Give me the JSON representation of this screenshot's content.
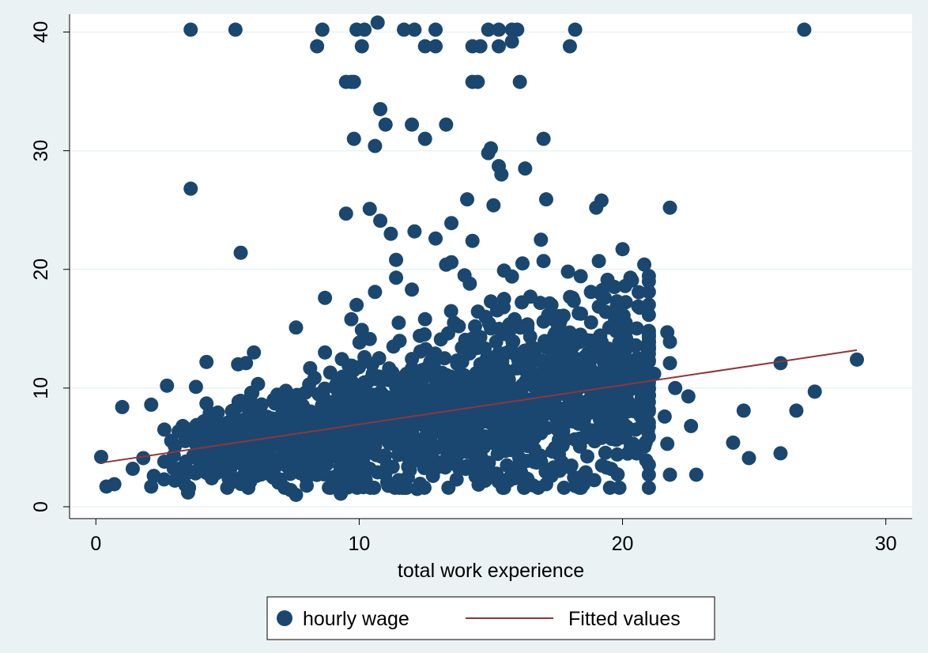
{
  "chart_data": {
    "type": "scatter",
    "title": "",
    "xlabel": "total work experience",
    "ylabel": "",
    "xlim": [
      -1,
      31
    ],
    "ylim": [
      -1,
      41.5
    ],
    "x_ticks": [
      0,
      10,
      20,
      30
    ],
    "y_ticks": [
      0,
      10,
      20,
      30,
      40
    ],
    "grid": "horizontal",
    "legend_position": "bottom",
    "colors": {
      "points": "#1a476f",
      "fit_line": "#90353b",
      "plot_bg": "#ffffff",
      "outer_bg": "#eaf2f3",
      "grid": "#eaf2f3"
    },
    "series": [
      {
        "name": "hourly wage",
        "type": "scatter",
        "color": "#1a476f",
        "points": [
          [
            3.6,
            40.2
          ],
          [
            5.3,
            40.2
          ],
          [
            8.6,
            40.2
          ],
          [
            9.9,
            40.2
          ],
          [
            10.2,
            40.2
          ],
          [
            10.7,
            40.8
          ],
          [
            11.7,
            40.2
          ],
          [
            12.1,
            40.2
          ],
          [
            12.9,
            40.2
          ],
          [
            14.9,
            40.2
          ],
          [
            15.3,
            40.2
          ],
          [
            15.8,
            40.2
          ],
          [
            16.0,
            40.2
          ],
          [
            18.2,
            40.2
          ],
          [
            26.9,
            40.2
          ],
          [
            8.4,
            38.8
          ],
          [
            10.1,
            38.8
          ],
          [
            12.5,
            38.8
          ],
          [
            12.9,
            38.8
          ],
          [
            14.3,
            38.8
          ],
          [
            14.6,
            38.8
          ],
          [
            15.3,
            38.8
          ],
          [
            15.8,
            39.2
          ],
          [
            18.0,
            38.8
          ],
          [
            9.5,
            35.8
          ],
          [
            9.7,
            35.8
          ],
          [
            9.8,
            35.8
          ],
          [
            14.3,
            35.8
          ],
          [
            14.5,
            35.8
          ],
          [
            16.1,
            35.8
          ],
          [
            10.8,
            33.5
          ],
          [
            11.0,
            32.2
          ],
          [
            12.0,
            32.2
          ],
          [
            13.3,
            32.2
          ],
          [
            9.8,
            31.0
          ],
          [
            10.6,
            30.4
          ],
          [
            12.5,
            31.0
          ],
          [
            15.0,
            30.2
          ],
          [
            14.9,
            29.8
          ],
          [
            15.3,
            28.7
          ],
          [
            15.4,
            28.0
          ],
          [
            16.3,
            28.5
          ],
          [
            17.0,
            31.0
          ],
          [
            3.6,
            26.8
          ],
          [
            9.5,
            24.7
          ],
          [
            10.4,
            25.1
          ],
          [
            11.2,
            23.0
          ],
          [
            10.8,
            24.1
          ],
          [
            12.1,
            23.2
          ],
          [
            12.9,
            22.6
          ],
          [
            13.5,
            23.9
          ],
          [
            14.1,
            25.9
          ],
          [
            14.3,
            22.4
          ],
          [
            15.1,
            25.4
          ],
          [
            17.1,
            25.9
          ],
          [
            16.9,
            22.5
          ],
          [
            19.0,
            25.2
          ],
          [
            19.2,
            25.8
          ],
          [
            21.8,
            25.2
          ],
          [
            5.5,
            21.4
          ],
          [
            11.4,
            20.8
          ],
          [
            13.3,
            20.4
          ],
          [
            13.5,
            20.6
          ],
          [
            15.5,
            19.9
          ],
          [
            15.8,
            19.4
          ],
          [
            16.2,
            20.5
          ],
          [
            17.0,
            20.7
          ],
          [
            19.1,
            20.7
          ],
          [
            20.0,
            21.7
          ],
          [
            20.3,
            19.3
          ],
          [
            20.1,
            18.6
          ],
          [
            9.9,
            17.0
          ],
          [
            8.7,
            17.6
          ],
          [
            10.6,
            18.1
          ],
          [
            11.4,
            19.3
          ],
          [
            12.0,
            18.3
          ],
          [
            14.0,
            19.5
          ],
          [
            14.2,
            18.8
          ],
          [
            15.0,
            17.3
          ],
          [
            16.5,
            17.7
          ],
          [
            17.3,
            17.0
          ],
          [
            18.1,
            17.6
          ],
          [
            18.8,
            18.1
          ],
          [
            19.8,
            17.1
          ],
          [
            7.6,
            15.1
          ],
          [
            9.7,
            15.8
          ],
          [
            10.1,
            14.9
          ],
          [
            11.5,
            15.5
          ],
          [
            12.5,
            15.8
          ],
          [
            13.6,
            15.5
          ],
          [
            14.8,
            16.0
          ],
          [
            15.9,
            15.8
          ],
          [
            17.6,
            15.2
          ],
          [
            18.4,
            14.5
          ],
          [
            19.5,
            15.1
          ],
          [
            20.2,
            15.1
          ],
          [
            21.7,
            14.7
          ],
          [
            21.8,
            13.9
          ],
          [
            20.5,
            13.6
          ],
          [
            21.0,
            14.0
          ],
          [
            4.2,
            12.2
          ],
          [
            5.4,
            12.0
          ],
          [
            5.7,
            12.1
          ],
          [
            6.0,
            13.0
          ],
          [
            8.7,
            13.0
          ],
          [
            21.8,
            12.1
          ],
          [
            22.0,
            10.0
          ],
          [
            22.5,
            9.3
          ],
          [
            2.7,
            10.2
          ],
          [
            1.0,
            8.4
          ],
          [
            2.1,
            8.6
          ],
          [
            2.6,
            6.5
          ],
          [
            3.8,
            10.1
          ],
          [
            4.2,
            8.7
          ],
          [
            0.2,
            4.2
          ],
          [
            0.4,
            1.7
          ],
          [
            0.7,
            1.9
          ],
          [
            2.1,
            1.7
          ],
          [
            3.5,
            1.2
          ],
          [
            7.4,
            1.4
          ],
          [
            7.6,
            1.0
          ],
          [
            9.3,
            1.1
          ],
          [
            8.9,
            1.6
          ],
          [
            11.8,
            1.6
          ],
          [
            12.2,
            1.5
          ],
          [
            15.5,
            1.6
          ],
          [
            16.6,
            1.8
          ],
          [
            17.1,
            1.9
          ],
          [
            18.4,
            2.1
          ],
          [
            21.8,
            2.7
          ],
          [
            21.0,
            2.7
          ],
          [
            22.8,
            2.7
          ],
          [
            22.6,
            6.8
          ],
          [
            24.2,
            5.4
          ],
          [
            24.6,
            8.1
          ],
          [
            24.8,
            4.1
          ],
          [
            26.0,
            4.5
          ],
          [
            26.0,
            12.1
          ],
          [
            26.6,
            8.1
          ],
          [
            27.3,
            9.7
          ],
          [
            28.9,
            12.4
          ],
          [
            20.6,
            10.2
          ],
          [
            21.2,
            11.2
          ],
          [
            21.6,
            7.6
          ],
          [
            21.7,
            5.3
          ],
          [
            20.9,
            3.9
          ],
          [
            20.5,
            6.5
          ],
          [
            6.3,
            7.8
          ],
          [
            6.8,
            8.7
          ],
          [
            7.2,
            7.1
          ],
          [
            7.8,
            9.4
          ],
          [
            8.1,
            10.3
          ],
          [
            8.4,
            7.6
          ],
          [
            8.9,
            11.3
          ],
          [
            9.3,
            9.5
          ],
          [
            9.6,
            11.9
          ],
          [
            10.2,
            12.6
          ],
          [
            10.6,
            8.9
          ],
          [
            11.0,
            10.7
          ],
          [
            11.3,
            13.5
          ],
          [
            11.8,
            11.2
          ],
          [
            12.3,
            14.4
          ],
          [
            12.7,
            12.2
          ],
          [
            13.1,
            14.1
          ],
          [
            13.4,
            10.6
          ],
          [
            13.9,
            13.4
          ],
          [
            14.4,
            15.2
          ],
          [
            14.8,
            12.3
          ],
          [
            15.2,
            13.9
          ],
          [
            15.7,
            14.8
          ],
          [
            16.1,
            11.8
          ],
          [
            16.6,
            13.4
          ],
          [
            17.0,
            15.6
          ],
          [
            17.4,
            12.6
          ],
          [
            17.9,
            13.8
          ],
          [
            18.3,
            11.5
          ],
          [
            18.7,
            12.9
          ],
          [
            19.1,
            13.4
          ],
          [
            19.5,
            11.9
          ],
          [
            19.9,
            9.1
          ],
          [
            20.3,
            8.2
          ],
          [
            20.7,
            7.6
          ],
          [
            21.0,
            9.4
          ],
          [
            3.0,
            5.1
          ],
          [
            3.3,
            6.8
          ],
          [
            3.7,
            4.3
          ],
          [
            4.1,
            7.2
          ],
          [
            4.5,
            5.6
          ],
          [
            4.9,
            3.6
          ],
          [
            5.2,
            6.3
          ],
          [
            5.6,
            4.6
          ],
          [
            6.0,
            5.4
          ],
          [
            6.4,
            3.9
          ],
          [
            6.8,
            6.1
          ],
          [
            7.2,
            4.8
          ],
          [
            7.6,
            5.7
          ],
          [
            8.0,
            3.7
          ],
          [
            8.4,
            6.4
          ],
          [
            8.8,
            5.1
          ],
          [
            9.2,
            7.3
          ],
          [
            9.6,
            4.4
          ],
          [
            10.0,
            6.8
          ],
          [
            10.4,
            3.2
          ],
          [
            10.8,
            5.9
          ],
          [
            11.2,
            7.8
          ],
          [
            11.6,
            4.6
          ],
          [
            12.0,
            6.3
          ],
          [
            12.4,
            8.6
          ],
          [
            12.8,
            3.9
          ],
          [
            13.2,
            7.1
          ],
          [
            13.6,
            5.4
          ],
          [
            14.0,
            9.2
          ],
          [
            14.4,
            4.2
          ],
          [
            14.8,
            7.7
          ],
          [
            15.2,
            6.0
          ],
          [
            15.6,
            9.8
          ],
          [
            16.0,
            4.8
          ],
          [
            16.4,
            8.3
          ],
          [
            16.8,
            6.5
          ],
          [
            17.2,
            10.4
          ],
          [
            17.6,
            5.1
          ],
          [
            18.0,
            8.9
          ],
          [
            18.4,
            7.2
          ],
          [
            18.8,
            10.9
          ],
          [
            19.2,
            5.8
          ],
          [
            19.6,
            9.5
          ],
          [
            20.0,
            6.9
          ],
          [
            1.4,
            3.2
          ],
          [
            1.8,
            4.1
          ],
          [
            2.2,
            2.6
          ],
          [
            2.6,
            3.8
          ],
          [
            3.0,
            2.2
          ],
          [
            4.4,
            2.4
          ],
          [
            5.2,
            2.1
          ],
          [
            6.1,
            2.6
          ],
          [
            7.0,
            2.3
          ],
          [
            8.2,
            2.8
          ],
          [
            9.5,
            2.5
          ],
          [
            10.7,
            2.9
          ],
          [
            11.5,
            2.2
          ],
          [
            12.8,
            2.6
          ],
          [
            13.7,
            2.3
          ],
          [
            14.6,
            2.8
          ],
          [
            15.9,
            2.4
          ],
          [
            17.3,
            2.6
          ],
          [
            18.6,
            2.9
          ],
          [
            19.4,
            3.3
          ],
          [
            19.8,
            4.4
          ],
          [
            20.4,
            5.3
          ]
        ]
      },
      {
        "name": "Fitted values",
        "type": "line",
        "color": "#90353b",
        "points": [
          [
            0.2,
            3.7
          ],
          [
            28.9,
            13.2
          ]
        ]
      }
    ]
  }
}
